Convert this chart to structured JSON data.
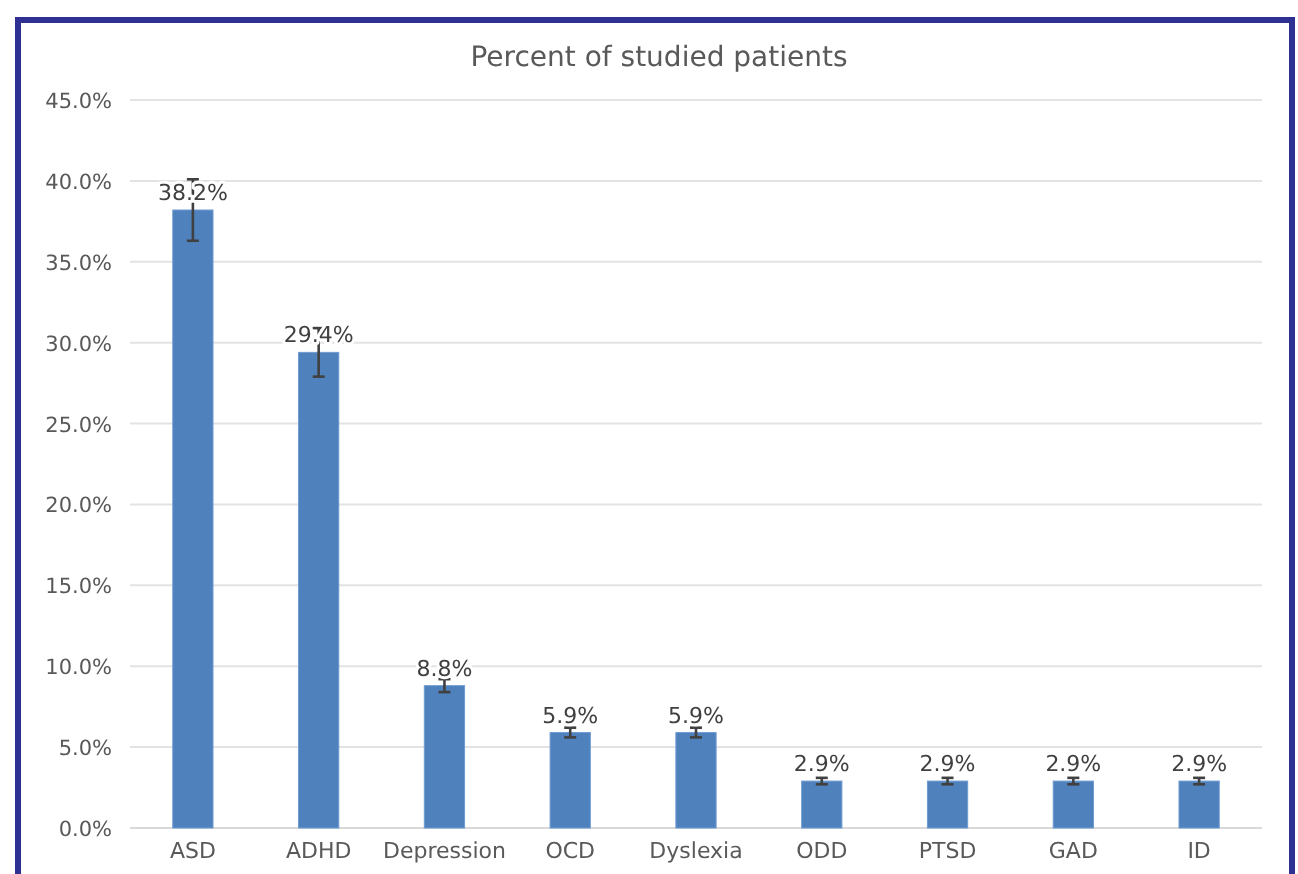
{
  "chart_data": {
    "type": "bar",
    "title": "Percent of studied patients",
    "categories": [
      "ASD",
      "ADHD",
      "Depression",
      "OCD",
      "Dyslexia",
      "ODD",
      "PTSD",
      "GAD",
      "ID"
    ],
    "values": [
      38.2,
      29.4,
      8.8,
      5.9,
      5.9,
      2.9,
      2.9,
      2.9,
      2.9
    ],
    "value_labels": [
      "38.2%",
      "29.4%",
      "8.8%",
      "5.9%",
      "5.9%",
      "2.9%",
      "2.9%",
      "2.9%",
      "2.9%"
    ],
    "errors": [
      1.9,
      1.5,
      0.4,
      0.3,
      0.3,
      0.2,
      0.2,
      0.2,
      0.2
    ],
    "color": "#4f81bd",
    "ylim": [
      0,
      45
    ],
    "yticks": [
      {
        "value": 0,
        "label": "0.0%"
      },
      {
        "value": 5,
        "label": "5.0%"
      },
      {
        "value": 10,
        "label": "10.0%"
      },
      {
        "value": 15,
        "label": "15.0%"
      },
      {
        "value": 20,
        "label": "20.0%"
      },
      {
        "value": 25,
        "label": "25.0%"
      },
      {
        "value": 30,
        "label": "30.0%"
      },
      {
        "value": 35,
        "label": "35.0%"
      },
      {
        "value": 40,
        "label": "40.0%"
      },
      {
        "value": 45,
        "label": "45.0%"
      }
    ],
    "grid": "y"
  }
}
